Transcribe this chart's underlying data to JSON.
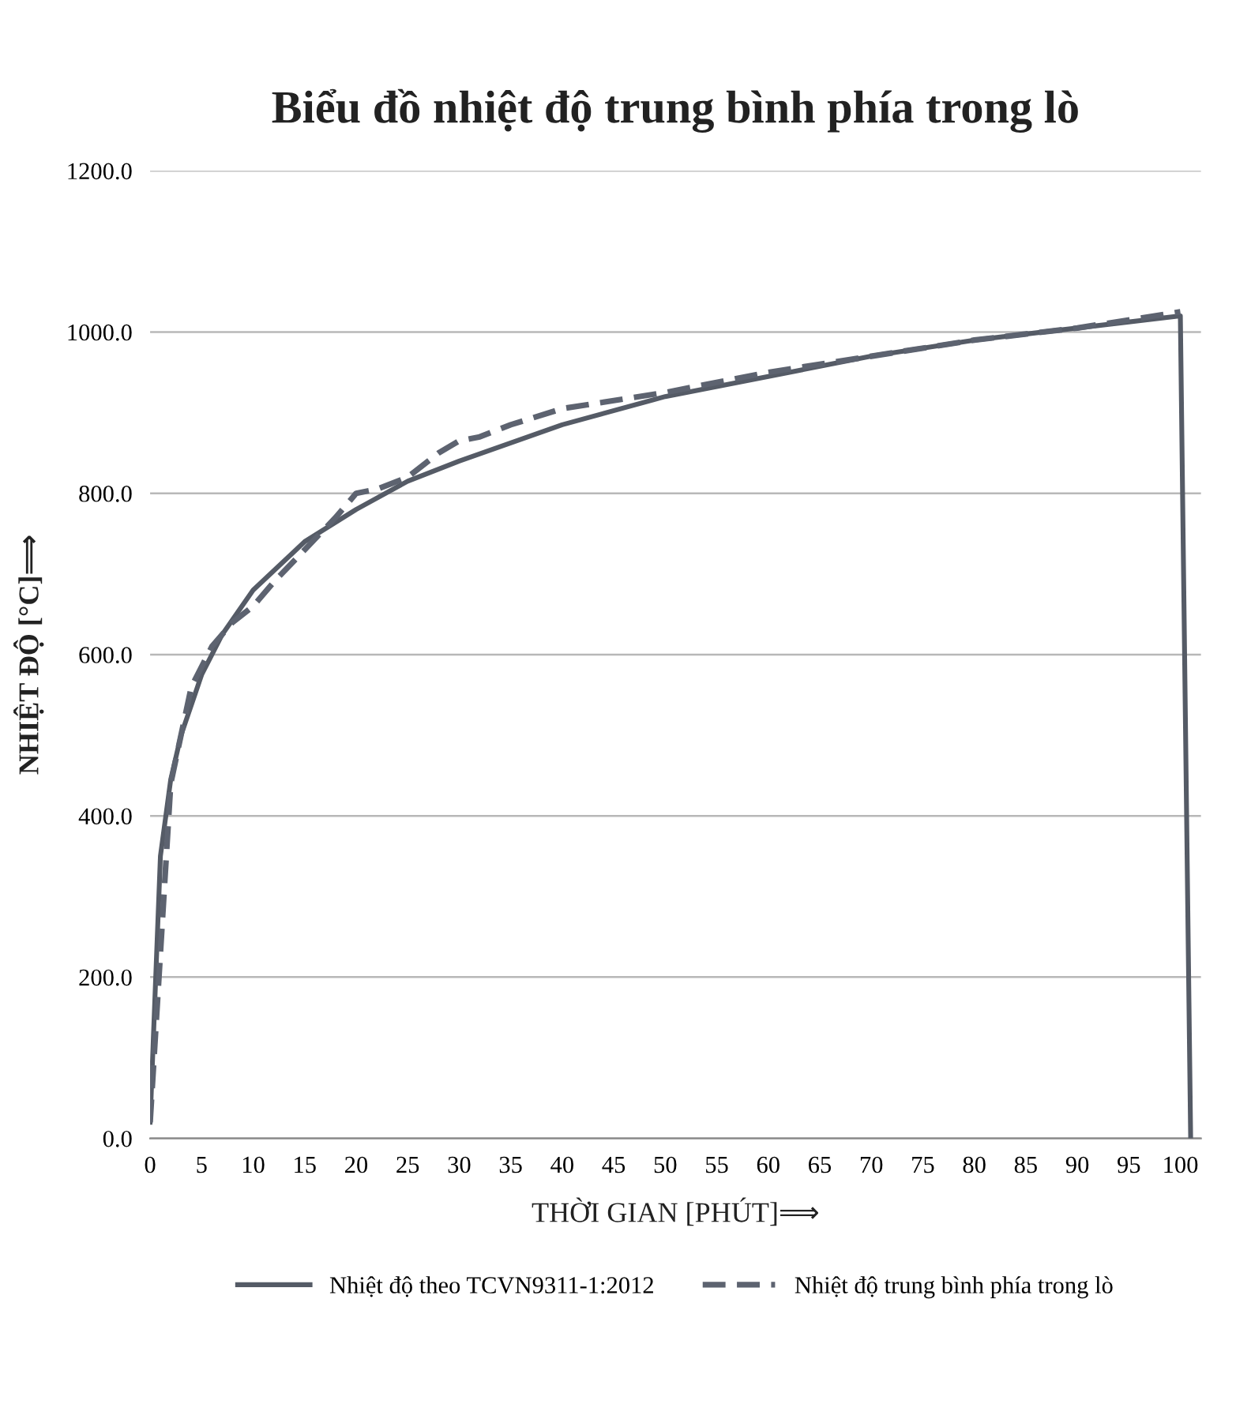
{
  "chart_data": {
    "type": "line",
    "title": "Biểu đồ nhiệt độ trung bình phía trong lò",
    "xlabel": "THỜI GIAN [PHÚT]⟹",
    "ylabel": "NHIỆT ĐỘ [°C]⟹",
    "xlim": [
      0,
      102
    ],
    "xticks": [
      0,
      5,
      10,
      15,
      20,
      25,
      30,
      35,
      40,
      45,
      50,
      55,
      60,
      65,
      70,
      75,
      80,
      85,
      90,
      95,
      100
    ],
    "ylim": [
      0,
      1200
    ],
    "yticks": [
      {
        "value": 0,
        "label": "0.0"
      },
      {
        "value": 200,
        "label": "200.0"
      },
      {
        "value": 400,
        "label": "400.0"
      },
      {
        "value": 600,
        "label": "600.0"
      },
      {
        "value": 800,
        "label": "800.0"
      },
      {
        "value": 1000,
        "label": "1000.0"
      },
      {
        "value": 1200,
        "label": "1200.0"
      }
    ],
    "grid": "y",
    "legend": "bottom",
    "series": [
      {
        "name": "Nhiệt độ theo TCVN9311-1:2012",
        "color": "#555b66",
        "line_style": "solid",
        "x": [
          0,
          1,
          2,
          3,
          5,
          7,
          10,
          15,
          20,
          25,
          30,
          40,
          50,
          60,
          70,
          80,
          90,
          100,
          101
        ],
        "values": [
          20,
          350,
          445,
          500,
          575,
          625,
          680,
          740,
          780,
          815,
          840,
          885,
          920,
          945,
          970,
          990,
          1005,
          1020,
          0
        ]
      },
      {
        "name": "Nhiệt độ trung bình phía trong lò",
        "color": "#5d6370",
        "line_style": "dashed",
        "x": [
          0,
          2,
          4,
          6,
          8,
          10,
          12,
          15,
          18,
          20,
          22,
          25,
          28,
          30,
          32,
          35,
          40,
          45,
          50,
          60,
          70,
          80,
          90,
          100
        ],
        "values": [
          20,
          440,
          560,
          610,
          640,
          660,
          690,
          730,
          770,
          800,
          805,
          820,
          850,
          865,
          870,
          885,
          905,
          915,
          925,
          950,
          970,
          990,
          1005,
          1025
        ]
      }
    ]
  }
}
